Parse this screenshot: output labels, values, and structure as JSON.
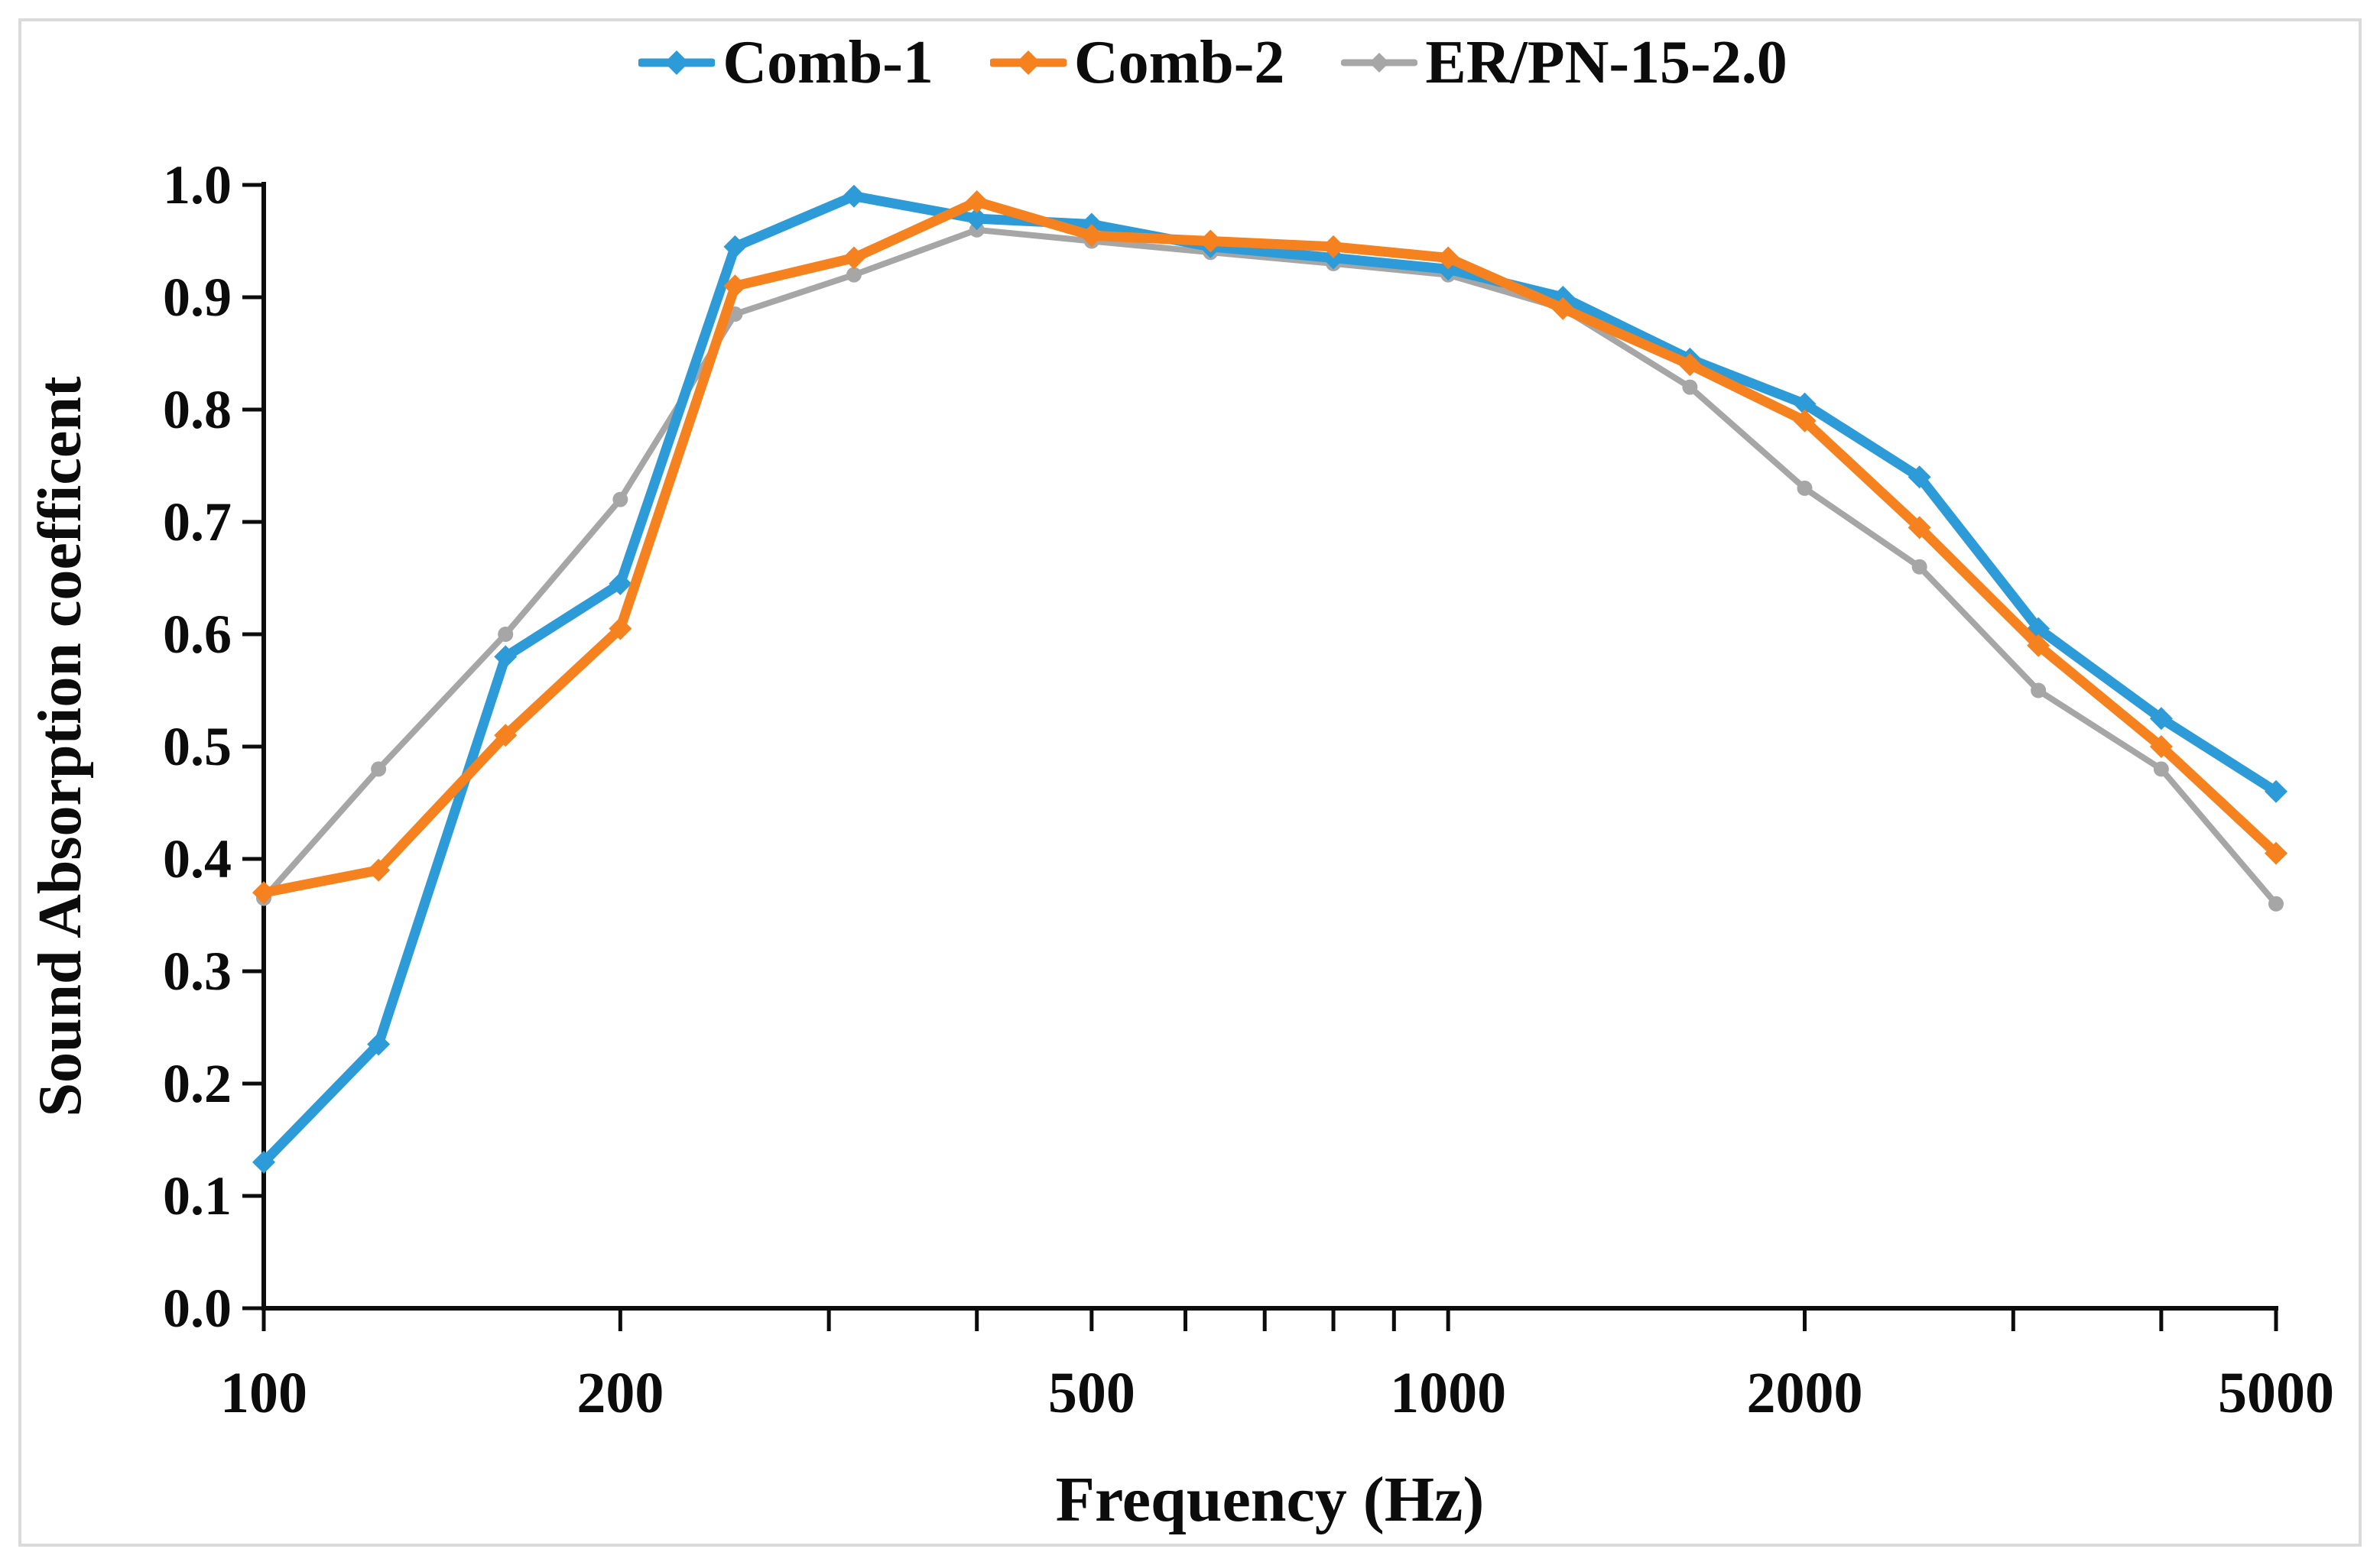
{
  "figure": {
    "legend": [
      {
        "label": "Comb-1",
        "color": "#2D9BD7"
      },
      {
        "label": "Comb-2",
        "color": "#F5811F"
      },
      {
        "label": "ER/PN-15-2.0",
        "color": "#A6A6A6"
      }
    ],
    "x_axis": {
      "title": "Frequency (Hz)",
      "scale": "log",
      "range": [
        100,
        5000
      ],
      "tick_labels": [
        "100",
        "200",
        "500",
        "1000",
        "2000",
        "5000"
      ],
      "tick_label_values": [
        100,
        200,
        500,
        1000,
        2000,
        5000
      ],
      "minor_ticks": [
        100,
        200,
        300,
        400,
        500,
        600,
        700,
        800,
        900,
        1000,
        2000,
        3000,
        4000,
        5000
      ]
    },
    "y_axis": {
      "title": "Sound Absorption coefficent",
      "range": [
        0.0,
        1.0
      ],
      "tick_step": 0.1,
      "tick_labels": [
        "0.0",
        "0.1",
        "0.2",
        "0.3",
        "0.4",
        "0.5",
        "0.6",
        "0.7",
        "0.8",
        "0.9",
        "1.0"
      ]
    }
  },
  "chart_data": {
    "type": "line",
    "title": "",
    "xlabel": "Frequency (Hz)",
    "ylabel": "Sound Absorption coefficent",
    "xscale": "log",
    "xlim": [
      100,
      5000
    ],
    "ylim": [
      0.0,
      1.0
    ],
    "grid": false,
    "legend_position": "top-center",
    "x": [
      100,
      125,
      160,
      200,
      250,
      315,
      400,
      500,
      630,
      800,
      1000,
      1250,
      1600,
      2000,
      2500,
      3150,
      4000,
      5000
    ],
    "series": [
      {
        "name": "Comb-1",
        "color": "#2D9BD7",
        "marker": "diamond",
        "line_width": 13,
        "values": [
          0.13,
          0.235,
          0.58,
          0.645,
          0.945,
          0.99,
          0.97,
          0.965,
          0.945,
          0.935,
          0.925,
          0.9,
          0.845,
          0.805,
          0.74,
          0.605,
          0.525,
          0.46
        ]
      },
      {
        "name": "Comb-2",
        "color": "#F5811F",
        "marker": "diamond",
        "line_width": 13,
        "values": [
          0.37,
          0.39,
          0.51,
          0.605,
          0.91,
          0.935,
          0.985,
          0.955,
          0.95,
          0.945,
          0.935,
          0.89,
          0.84,
          0.79,
          0.695,
          0.59,
          0.5,
          0.405
        ]
      },
      {
        "name": "ER/PN-15-2.0",
        "color": "#A6A6A6",
        "marker": "circle",
        "line_width": 8,
        "values": [
          0.365,
          0.48,
          0.6,
          0.72,
          0.885,
          0.92,
          0.96,
          0.95,
          0.94,
          0.93,
          0.92,
          0.89,
          0.82,
          0.73,
          0.66,
          0.55,
          0.48,
          0.36
        ]
      }
    ]
  }
}
